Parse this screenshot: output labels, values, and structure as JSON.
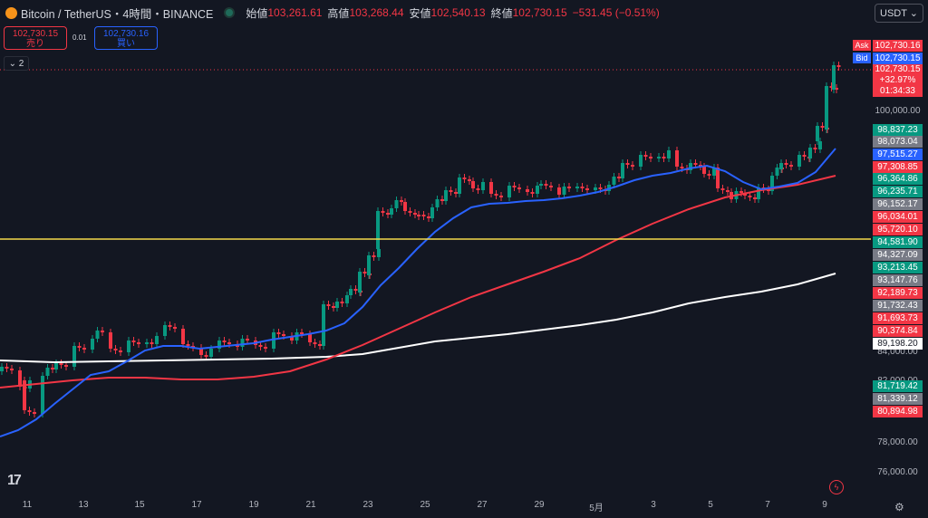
{
  "header": {
    "symbol": "Bitcoin / TetherUS・4時間・BINANCE",
    "open_label": "始値",
    "open": "103,261.61",
    "high_label": "高値",
    "high": "103,268.44",
    "low_label": "安値",
    "low": "102,540.13",
    "close_label": "終値",
    "close": "102,730.15",
    "change": "−531.45 (−0.51%)"
  },
  "currency_select": {
    "value": "USDT"
  },
  "trade": {
    "sell_price": "102,730.15",
    "sell_label": "売り",
    "spread": "0.01",
    "buy_price": "102,730.16",
    "buy_label": "買い"
  },
  "indicators": {
    "count": "2"
  },
  "price_axis": {
    "ask_tag": "Ask",
    "ask": "102,730.16",
    "bid_tag": "Bid",
    "bid": "102,730.15",
    "last": "102,730.15",
    "last_pct": "+32.97%",
    "countdown": "01:34:33",
    "ticks": [
      "100,000.00",
      "84,000.00",
      "82,000.00",
      "78,000.00",
      "76,000.00"
    ],
    "labels": [
      {
        "text": "98,837.23",
        "color": "#089981"
      },
      {
        "text": "98,073.04",
        "color": "#787b86"
      },
      {
        "text": "97,515.27",
        "color": "#2962ff"
      },
      {
        "text": "97,308.85",
        "color": "#f23645"
      },
      {
        "text": "96,364.86",
        "color": "#089981"
      },
      {
        "text": "96,235.71",
        "color": "#089981"
      },
      {
        "text": "96,152.17",
        "color": "#787b86"
      },
      {
        "text": "96,034.01",
        "color": "#f23645"
      },
      {
        "text": "95,720.10",
        "color": "#f23645"
      },
      {
        "text": "94,581.90",
        "color": "#089981"
      },
      {
        "text": "94,327.09",
        "color": "#787b86"
      },
      {
        "text": "93,213.45",
        "color": "#089981"
      },
      {
        "text": "93,147.76",
        "color": "#787b86"
      },
      {
        "text": "92,189.73",
        "color": "#f23645"
      },
      {
        "text": "91,732.43",
        "color": "#787b86"
      },
      {
        "text": "91,693.73",
        "color": "#f23645"
      },
      {
        "text": "90,374.84",
        "color": "#f23645"
      },
      {
        "text": "89,198.20",
        "color": "#ffffff"
      },
      {
        "text": "81,719.42",
        "color": "#089981"
      },
      {
        "text": "81,339.12",
        "color": "#787b86"
      },
      {
        "text": "80,894.98",
        "color": "#f23645"
      }
    ]
  },
  "time_axis": [
    "11",
    "13",
    "15",
    "17",
    "19",
    "21",
    "23",
    "25",
    "27",
    "29",
    "5月",
    "3",
    "5",
    "7",
    "9"
  ],
  "colors": {
    "up": "#089981",
    "down": "#f23645",
    "ma_fast": "#2962ff",
    "ma_mid": "#f23645",
    "ma_slow": "#ffffff",
    "hline": "#f5d94b"
  }
}
